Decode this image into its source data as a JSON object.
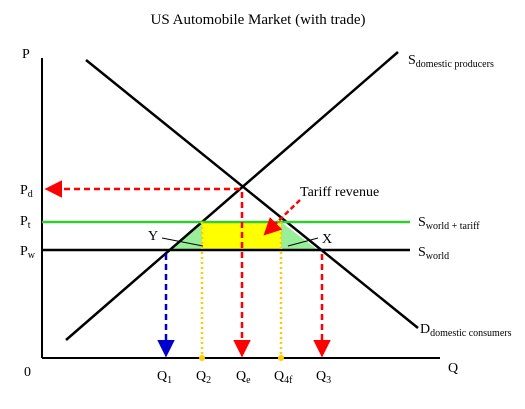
{
  "title": "US Automobile Market (with trade)",
  "axes": {
    "y_label": "P",
    "x_label": "Q",
    "origin": "0"
  },
  "price_labels": {
    "pd": {
      "main": "P",
      "sub": "d"
    },
    "pt": {
      "main": "P",
      "sub": "t"
    },
    "pw": {
      "main": "P",
      "sub": "w"
    }
  },
  "quantity_labels": {
    "q1": {
      "main": "Q",
      "sub": "1"
    },
    "q2": {
      "main": "Q",
      "sub": "2"
    },
    "qe": {
      "main": "Q",
      "sub": "e"
    },
    "q4f": {
      "main": "Q",
      "sub": "4f"
    },
    "q3": {
      "main": "Q",
      "sub": "3"
    }
  },
  "curves": {
    "supply_domestic": {
      "main": "S",
      "sub": "domestic producers"
    },
    "supply_world_tariff": {
      "main": "S",
      "sub": "world + tariff"
    },
    "supply_world": {
      "main": "S",
      "sub": "world"
    },
    "demand_domestic": {
      "main": "D",
      "sub": "domestic consumers"
    }
  },
  "annotations": {
    "tariff_revenue": "Tariff revenue",
    "y": "Y",
    "x": "X"
  },
  "colors": {
    "axis": "#000000",
    "green_line": "#33cc33",
    "tariff_box": "#ffff00",
    "deadweight": "#99ee99",
    "red_arrow": "#ff0000",
    "blue_arrow": "#0000cc",
    "yellow_dotted": "#ffcc00"
  }
}
